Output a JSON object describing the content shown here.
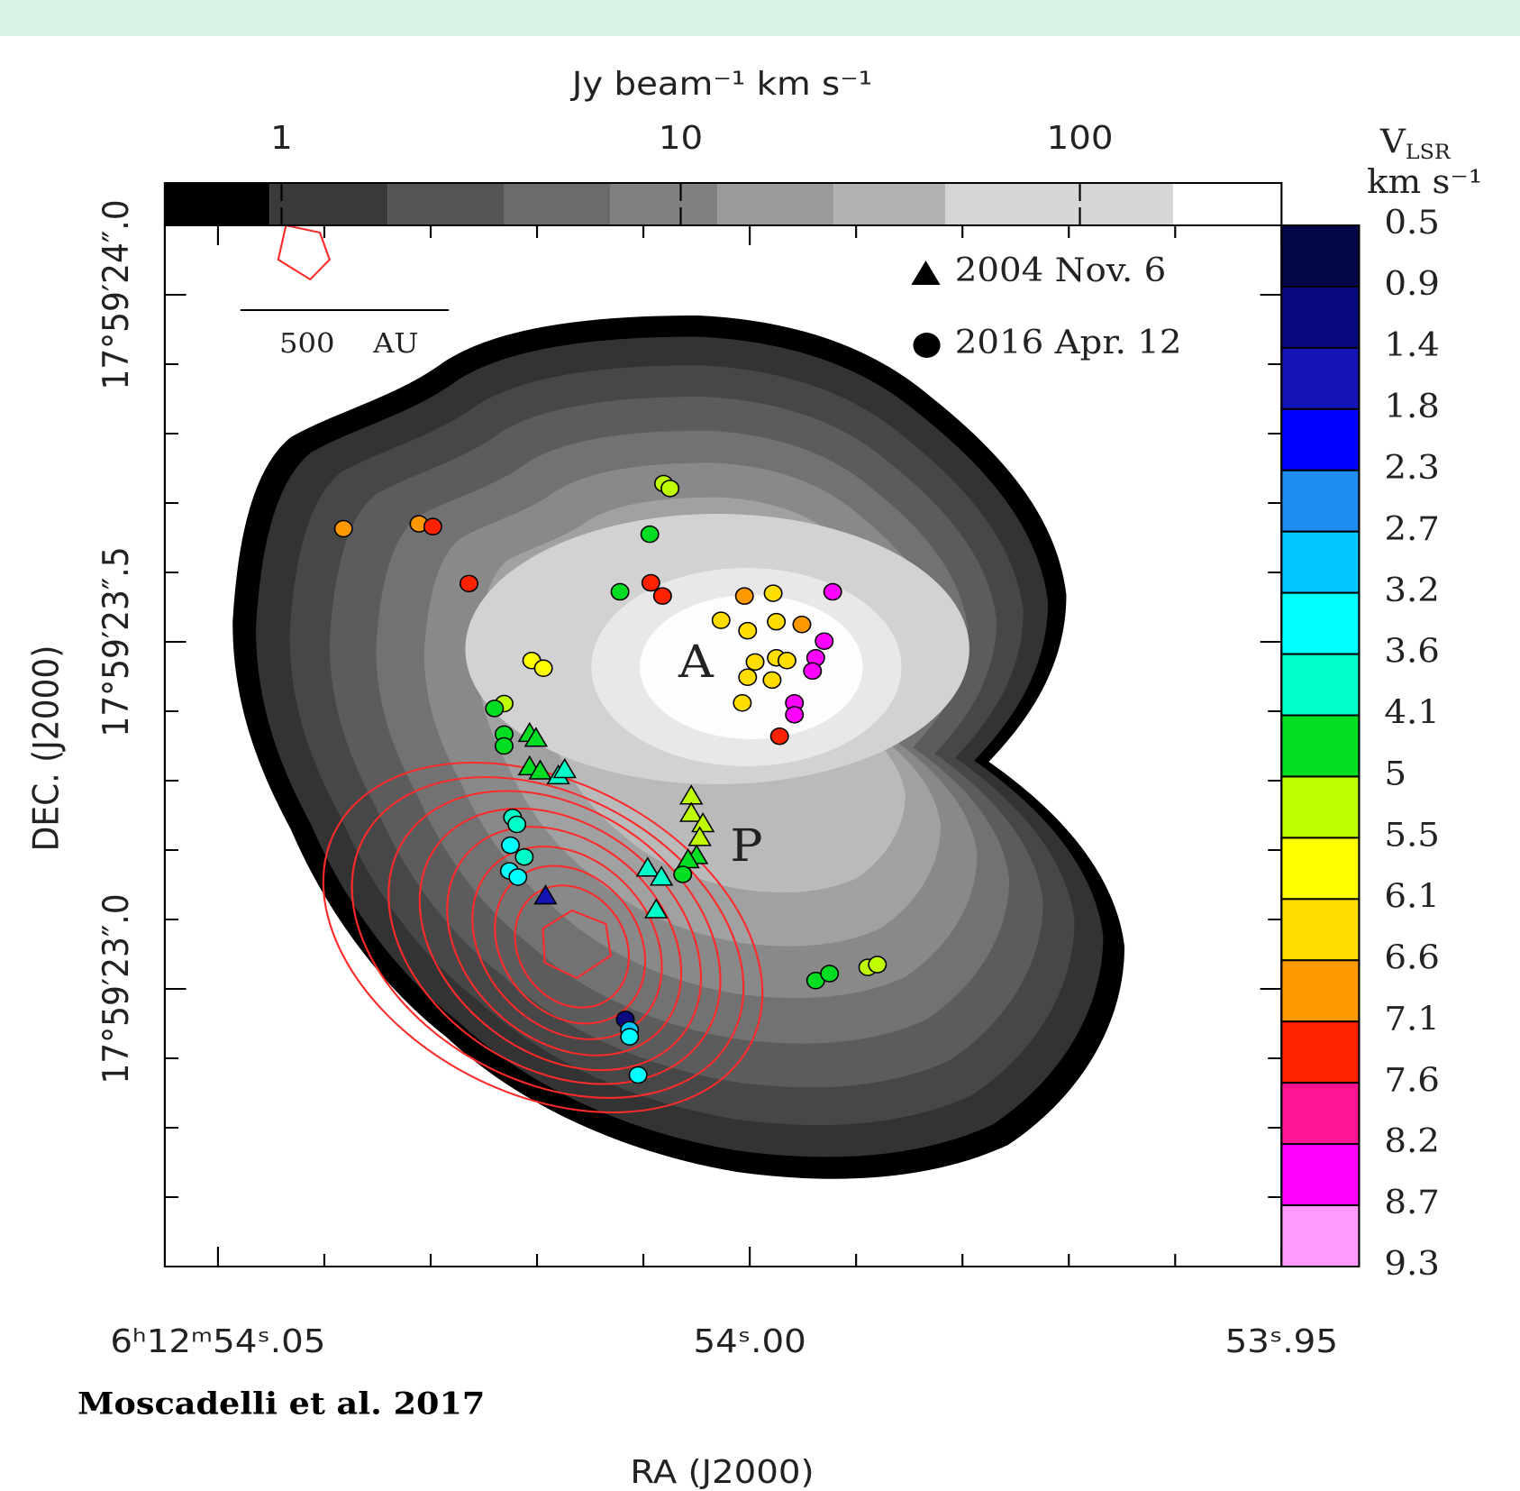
{
  "chart_data": {
    "type": "scatter",
    "credit": "Moscadelli et al. 2017",
    "xlabel": "RA (J2000)",
    "ylabel": "DEC. (J2000)",
    "xlim": [
      54.055,
      53.95
    ],
    "xticks": [
      {
        "value": 54.05,
        "label": "6ʰ12ᵐ54ˢ.05"
      },
      {
        "value": 54.0,
        "label": "54ˢ.00"
      },
      {
        "value": 53.95,
        "label": "53ˢ.95"
      }
    ],
    "xminorticks": [
      54.04,
      54.03,
      54.02,
      54.01,
      53.99,
      53.98,
      53.97,
      53.96
    ],
    "ylim": [
      22.6,
      24.1
    ],
    "yticks": [
      {
        "value": 24.0,
        "label": "17°59′24″.0"
      },
      {
        "value": 23.5,
        "label": "17°59′23″.5"
      },
      {
        "value": 23.0,
        "label": "17°59′23″.0"
      }
    ],
    "yminorticks": [
      23.9,
      23.8,
      23.7,
      23.6,
      23.4,
      23.3,
      23.2,
      23.1,
      22.9,
      22.8,
      22.7
    ],
    "top_colorbar": {
      "label": "Jy beam⁻¹ km s⁻¹",
      "log": true,
      "lim": [
        0.51,
        320
      ],
      "ticks": [
        1,
        10,
        100
      ]
    },
    "velocity_colorbar": {
      "symbol": "V",
      "subscript": "LSR",
      "unit": "km s⁻¹",
      "levels": [
        0.5,
        0.9,
        1.4,
        1.8,
        2.3,
        2.7,
        3.2,
        3.6,
        4.1,
        5,
        5.5,
        6.1,
        6.6,
        7.1,
        7.6,
        8.2,
        8.7,
        9.3
      ],
      "colors": [
        "#05054a",
        "#0a0a80",
        "#1414b4",
        "#0000ff",
        "#1e8cf0",
        "#00c8ff",
        "#00ffff",
        "#00ffc8",
        "#00dd22",
        "#c0ff00",
        "#ffff00",
        "#ffdd00",
        "#ff9900",
        "#ff2200",
        "#ff1493",
        "#ff00ff",
        "#ff99ff"
      ]
    },
    "annotations": [
      "A",
      "P"
    ],
    "scale_bar": "500 AU",
    "series": [
      {
        "name": "2004 Nov. 6",
        "marker": "triangle",
        "x": [
          54.0207,
          54.0201,
          54.0207,
          54.0197,
          54.018,
          54.0174,
          54.0055,
          54.0055,
          54.0044,
          54.0047,
          54.005,
          54.0058,
          54.0096,
          54.0083,
          54.0192,
          54.0088
        ],
        "y": [
          23.367,
          23.36,
          23.319,
          23.313,
          23.306,
          23.315,
          23.277,
          23.252,
          23.237,
          23.217,
          23.191,
          23.185,
          23.173,
          23.16,
          23.133,
          23.113
        ],
        "v": [
          4.5,
          4.5,
          4.5,
          4.5,
          3.8,
          3.8,
          5.2,
          5.2,
          5.2,
          5.2,
          4.5,
          4.5,
          3.8,
          3.8,
          1.6,
          3.8
        ]
      },
      {
        "name": "2016 Apr. 12",
        "marker": "circle",
        "x": [
          54.0382,
          54.0311,
          54.0298,
          54.0264,
          54.0081,
          54.0075,
          54.0094,
          54.0122,
          54.0093,
          54.0082,
          54.0205,
          54.0194,
          54.0231,
          54.024,
          54.0231,
          54.0231,
          54.0223,
          54.0219,
          54.0225,
          54.0212,
          54.0226,
          54.0218,
          54.0005,
          53.9978,
          54.0027,
          54.0002,
          53.9975,
          53.9951,
          53.9995,
          53.9975,
          54.0002,
          53.9979,
          54.0007,
          53.9965,
          53.9938,
          53.993,
          53.9941,
          53.9958,
          53.9958,
          53.9922,
          53.9972,
          53.9938,
          53.9925,
          53.9889,
          53.988,
          54.0117,
          54.0113,
          54.0113,
          54.0105,
          54.0063
        ],
        "y": [
          23.663,
          23.67,
          23.666,
          23.584,
          23.728,
          23.721,
          23.655,
          23.572,
          23.585,
          23.566,
          23.473,
          23.462,
          23.411,
          23.404,
          23.367,
          23.35,
          23.247,
          23.237,
          23.207,
          23.19,
          23.17,
          23.161,
          23.566,
          23.57,
          23.531,
          23.516,
          23.529,
          23.525,
          23.471,
          23.477,
          23.449,
          23.445,
          23.412,
          23.473,
          23.477,
          23.501,
          23.458,
          23.412,
          23.395,
          23.572,
          23.364,
          23.012,
          23.022,
          23.031,
          23.035,
          22.956,
          22.941,
          22.931,
          22.876,
          23.165
        ],
        "v": [
          6.8,
          6.8,
          7.3,
          7.3,
          5.2,
          5.2,
          4.5,
          4.5,
          7.3,
          7.3,
          5.8,
          5.8,
          5.2,
          4.5,
          4.5,
          4.5,
          3.8,
          3.8,
          3.4,
          3.8,
          3.4,
          3.4,
          6.8,
          6.3,
          6.3,
          6.3,
          6.3,
          6.8,
          6.3,
          6.3,
          6.3,
          6.3,
          6.3,
          6.3,
          8.5,
          8.5,
          8.5,
          8.5,
          8.5,
          8.5,
          7.3,
          4.5,
          4.5,
          5.2,
          5.2,
          1.1,
          2.9,
          3.4,
          3.4,
          4.5
        ]
      }
    ]
  }
}
